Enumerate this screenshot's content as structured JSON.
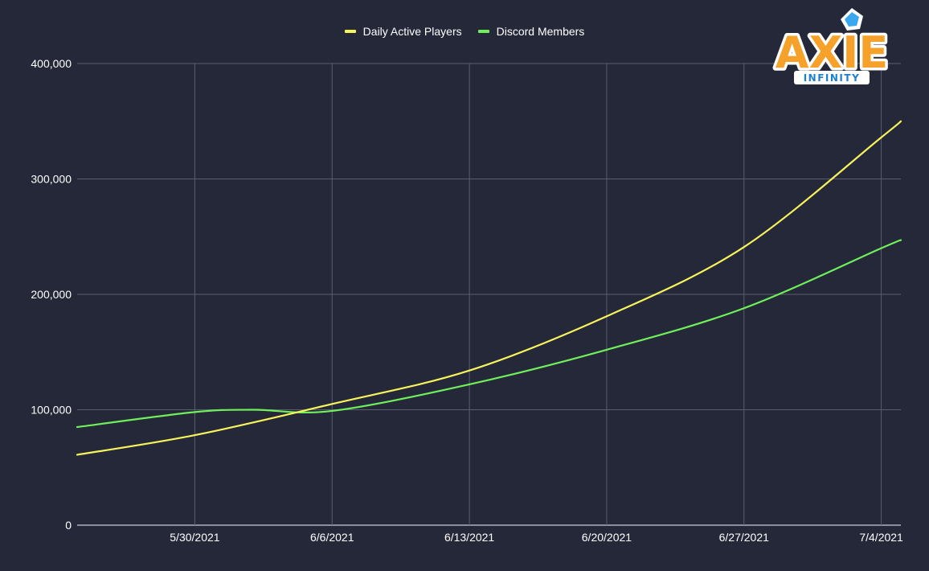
{
  "chart_data": {
    "type": "line",
    "title": "",
    "xlabel": "",
    "ylabel": "",
    "x_ticks": [
      "5/30/2021",
      "6/6/2021",
      "6/13/2021",
      "6/20/2021",
      "6/27/2021",
      "7/4/2021"
    ],
    "x_range": [
      "5/24/2021",
      "7/5/2021"
    ],
    "ylim": [
      0,
      400000
    ],
    "y_ticks": [
      "0",
      "100,000",
      "200,000",
      "300,000",
      "400,000"
    ],
    "y_tick_values": [
      0,
      100000,
      200000,
      300000,
      400000
    ],
    "grid": true,
    "legend_position": "top-center",
    "smooth": true,
    "series": [
      {
        "name": "Daily Active Players",
        "color": "#f7f35b",
        "points": [
          {
            "x": "5/24/2021",
            "y": 61000
          },
          {
            "x": "5/30/2021",
            "y": 78000
          },
          {
            "x": "6/6/2021",
            "y": 105000
          },
          {
            "x": "6/13/2021",
            "y": 134000
          },
          {
            "x": "6/20/2021",
            "y": 181000
          },
          {
            "x": "6/27/2021",
            "y": 241000
          },
          {
            "x": "7/4/2021",
            "y": 336000
          },
          {
            "x": "7/5/2021",
            "y": 350000
          }
        ]
      },
      {
        "name": "Discord Members",
        "color": "#6ff05a",
        "points": [
          {
            "x": "5/24/2021",
            "y": 85000
          },
          {
            "x": "5/30/2021",
            "y": 98000
          },
          {
            "x": "6/2/2021",
            "y": 100000
          },
          {
            "x": "6/6/2021",
            "y": 99000
          },
          {
            "x": "6/13/2021",
            "y": 122000
          },
          {
            "x": "6/20/2021",
            "y": 152000
          },
          {
            "x": "6/27/2021",
            "y": 188000
          },
          {
            "x": "7/4/2021",
            "y": 240000
          },
          {
            "x": "7/5/2021",
            "y": 247000
          }
        ]
      }
    ]
  },
  "logo": {
    "text": "AXIE",
    "subtext": "INFINITY",
    "colors": {
      "fill": "#f6a12a",
      "outline": "#ffffff",
      "banner": "#ffffff",
      "banner_text": "#1d7fd1",
      "gem": "#3aa7f0"
    }
  },
  "colors": {
    "background": "#252839",
    "grid": "#5a5e70",
    "axis_text": "#ffffff"
  }
}
